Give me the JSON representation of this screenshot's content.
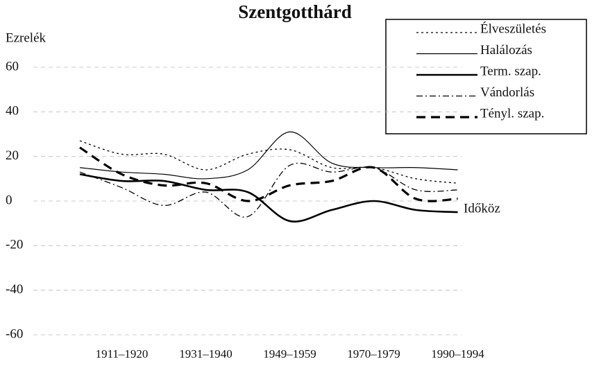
{
  "chart_data": {
    "type": "line",
    "title": "Szentgotthárd",
    "y_label": "Ezrelék",
    "x_label": "Időköz",
    "categories": [
      null,
      "1911–1920",
      null,
      "1931–1940",
      null,
      "1949–1959",
      null,
      "1970–1979",
      null,
      "1990–1994"
    ],
    "series": [
      {
        "name": "Élveszületés",
        "color": "#000000",
        "line_style": "dotted",
        "values": [
          27,
          21,
          21,
          14,
          21,
          23,
          15,
          15,
          10,
          8
        ]
      },
      {
        "name": "Halálozás",
        "color": "#000000",
        "line_style": "thin",
        "values": [
          15,
          13,
          12,
          10,
          14,
          31,
          17,
          15,
          15,
          14
        ]
      },
      {
        "name": "Term. szap.",
        "color": "#000000",
        "line_style": "thick",
        "values": [
          12,
          9,
          9,
          5,
          4,
          -9,
          -4,
          0,
          -4,
          -5
        ]
      },
      {
        "name": "Vándorlás",
        "color": "#000000",
        "line_style": "dashdot",
        "values": [
          13,
          6,
          -2,
          4,
          -7,
          16,
          13,
          15,
          5,
          5
        ]
      },
      {
        "name": "Tényl. szap.",
        "color": "#000000",
        "line_style": "thickdash",
        "values": [
          24,
          12,
          7,
          8,
          0,
          7,
          9,
          15,
          1,
          1
        ]
      }
    ],
    "ylim": [
      -60,
      60
    ],
    "yticks": [
      -60,
      -40,
      -20,
      0,
      20,
      40,
      60
    ],
    "grid": true,
    "legend": "top-right"
  }
}
